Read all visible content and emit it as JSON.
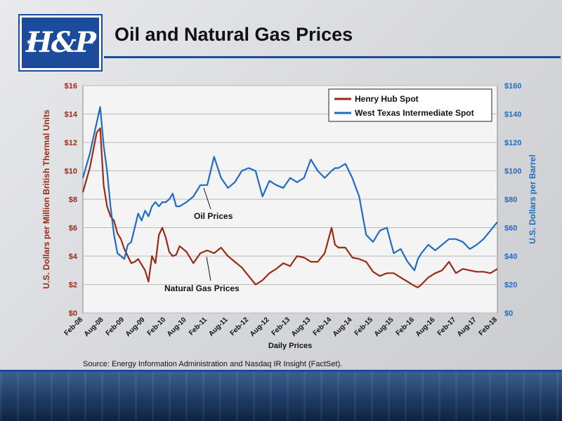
{
  "logo": {
    "text": "H&P"
  },
  "page_title": "Oil and Natural Gas Prices",
  "source_note": "Source:  Energy Information Administration and Nasdaq IR Insight (FactSet).",
  "colors": {
    "gas": "#9b2a15",
    "oil": "#1f6cc2",
    "axis_left_text": "#9b2a15",
    "axis_right_text": "#1f6cc2"
  },
  "chart_data": {
    "type": "line",
    "xlabel": "Daily Prices",
    "ylabel_left": "U.S. Dollars per Million British Thermal Units",
    "ylabel_right": "U.S. Dollars per Barrel",
    "ylim_left": [
      0,
      16
    ],
    "ylim_right": [
      0,
      160
    ],
    "yticks_left": [
      "$0",
      "$2",
      "$4",
      "$6",
      "$8",
      "$10",
      "$12",
      "$14",
      "$16"
    ],
    "yticks_right": [
      "$0",
      "$20",
      "$40",
      "$60",
      "$80",
      "$100",
      "$120",
      "$140",
      "$160"
    ],
    "x_ticks": [
      "Feb-08",
      "Aug-08",
      "Feb-09",
      "Aug-09",
      "Feb-10",
      "Aug-10",
      "Feb-11",
      "Aug-11",
      "Feb-12",
      "Aug-12",
      "Feb-13",
      "Aug-13",
      "Feb-14",
      "Aug-14",
      "Feb-15",
      "Aug-15",
      "Feb-16",
      "Aug-16",
      "Feb-17",
      "Aug-17",
      "Feb-18"
    ],
    "legend_position": "top-right",
    "annotations": [
      "Oil Prices",
      "Natural Gas Prices"
    ],
    "series": [
      {
        "name": "Henry Hub Spot",
        "axis": "left",
        "x": [
          "Feb-08",
          "Apr-08",
          "Jun-08",
          "Jul-08",
          "Aug-08",
          "Sep-08",
          "Oct-08",
          "Nov-08",
          "Dec-08",
          "Jan-09",
          "Feb-09",
          "Mar-09",
          "Apr-09",
          "May-09",
          "Jun-09",
          "Jul-09",
          "Aug-09",
          "Sep-09",
          "Oct-09",
          "Nov-09",
          "Dec-09",
          "Jan-10",
          "Feb-10",
          "Mar-10",
          "Apr-10",
          "May-10",
          "Jun-10",
          "Aug-10",
          "Oct-10",
          "Dec-10",
          "Feb-11",
          "Apr-11",
          "Jun-11",
          "Aug-11",
          "Oct-11",
          "Dec-11",
          "Feb-12",
          "Apr-12",
          "Jun-12",
          "Aug-12",
          "Oct-12",
          "Dec-12",
          "Feb-13",
          "Apr-13",
          "Jun-13",
          "Aug-13",
          "Oct-13",
          "Dec-13",
          "Feb-14",
          "Mar-14",
          "Apr-14",
          "Jun-14",
          "Aug-14",
          "Oct-14",
          "Dec-14",
          "Feb-15",
          "Apr-15",
          "Jun-15",
          "Aug-15",
          "Oct-15",
          "Dec-15",
          "Feb-16",
          "Mar-16",
          "Apr-16",
          "Jun-16",
          "Aug-16",
          "Oct-16",
          "Dec-16",
          "Feb-17",
          "Apr-17",
          "Jun-17",
          "Aug-17",
          "Oct-17",
          "Dec-17",
          "Feb-18"
        ],
        "values": [
          8.5,
          10.2,
          12.7,
          13.0,
          9.0,
          7.5,
          6.8,
          6.5,
          5.6,
          5.2,
          4.5,
          4.0,
          3.5,
          3.6,
          3.8,
          3.4,
          3.0,
          2.2,
          4.0,
          3.5,
          5.5,
          6.0,
          5.3,
          4.3,
          4.0,
          4.1,
          4.7,
          4.3,
          3.5,
          4.2,
          4.4,
          4.2,
          4.6,
          4.0,
          3.6,
          3.2,
          2.6,
          2.0,
          2.3,
          2.8,
          3.1,
          3.5,
          3.3,
          4.0,
          3.9,
          3.6,
          3.6,
          4.2,
          6.0,
          4.8,
          4.6,
          4.6,
          3.9,
          3.8,
          3.6,
          2.9,
          2.6,
          2.8,
          2.8,
          2.5,
          2.2,
          1.9,
          1.8,
          2.0,
          2.5,
          2.8,
          3.0,
          3.6,
          2.8,
          3.1,
          3.0,
          2.9,
          2.9,
          2.8,
          3.1
        ]
      },
      {
        "name": "West Texas Intermediate Spot",
        "axis": "right",
        "x": [
          "Feb-08",
          "Apr-08",
          "Jun-08",
          "Jul-08",
          "Aug-08",
          "Sep-08",
          "Oct-08",
          "Nov-08",
          "Dec-08",
          "Jan-09",
          "Feb-09",
          "Mar-09",
          "Apr-09",
          "May-09",
          "Jun-09",
          "Jul-09",
          "Aug-09",
          "Sep-09",
          "Oct-09",
          "Nov-09",
          "Dec-09",
          "Jan-10",
          "Feb-10",
          "Mar-10",
          "Apr-10",
          "May-10",
          "Jun-10",
          "Aug-10",
          "Oct-10",
          "Dec-10",
          "Feb-11",
          "Apr-11",
          "Jun-11",
          "Aug-11",
          "Oct-11",
          "Dec-11",
          "Feb-12",
          "Apr-12",
          "Jun-12",
          "Aug-12",
          "Oct-12",
          "Dec-12",
          "Feb-13",
          "Apr-13",
          "Jun-13",
          "Aug-13",
          "Oct-13",
          "Dec-13",
          "Feb-14",
          "Mar-14",
          "Apr-14",
          "Jun-14",
          "Aug-14",
          "Oct-14",
          "Dec-14",
          "Feb-15",
          "Apr-15",
          "Jun-15",
          "Aug-15",
          "Oct-15",
          "Dec-15",
          "Feb-16",
          "Mar-16",
          "Apr-16",
          "Jun-16",
          "Aug-16",
          "Oct-16",
          "Dec-16",
          "Feb-17",
          "Apr-17",
          "Jun-17",
          "Aug-17",
          "Oct-17",
          "Dec-17",
          "Feb-18"
        ],
        "values": [
          95,
          112,
          134,
          145,
          118,
          100,
          75,
          55,
          42,
          40,
          38,
          48,
          50,
          60,
          70,
          65,
          72,
          68,
          75,
          78,
          75,
          78,
          78,
          80,
          84,
          75,
          75,
          78,
          82,
          90,
          90,
          110,
          95,
          88,
          92,
          100,
          102,
          100,
          82,
          93,
          90,
          88,
          95,
          92,
          95,
          108,
          100,
          95,
          100,
          102,
          102,
          105,
          95,
          82,
          55,
          50,
          58,
          60,
          42,
          45,
          36,
          30,
          38,
          42,
          48,
          44,
          48,
          52,
          52,
          50,
          45,
          48,
          52,
          58,
          64
        ]
      }
    ]
  }
}
